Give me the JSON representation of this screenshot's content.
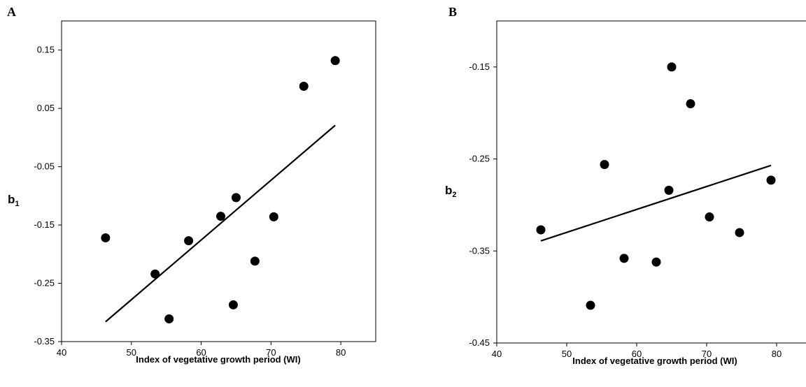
{
  "chart_data": [
    {
      "panel": "A",
      "type": "scatter",
      "xlabel": "Index of vegetative growth period (WI)",
      "ylabel": "b",
      "ylabel_sub": "1",
      "xlim": [
        40,
        85
      ],
      "ylim": [
        -0.35,
        0.2
      ],
      "xticks": [
        "40",
        "50",
        "60",
        "70",
        "80"
      ],
      "yticks": [
        "0.15",
        "0.05",
        "-0.05",
        "-0.15",
        "-0.25",
        "-0.35"
      ],
      "points": [
        [
          46.3,
          -0.172
        ],
        [
          53.4,
          -0.234
        ],
        [
          55.4,
          -0.311
        ],
        [
          58.2,
          -0.177
        ],
        [
          62.8,
          -0.135
        ],
        [
          64.6,
          -0.287
        ],
        [
          65.0,
          -0.103
        ],
        [
          67.7,
          -0.212
        ],
        [
          70.4,
          -0.136
        ],
        [
          74.7,
          0.088
        ],
        [
          79.2,
          0.132
        ]
      ],
      "trendline": [
        [
          46.3,
          -0.316
        ],
        [
          79.2,
          0.021
        ]
      ],
      "grid": false
    },
    {
      "panel": "B",
      "type": "scatter",
      "xlabel": "Index of vegetative growth period (WI)",
      "ylabel": "b",
      "ylabel_sub": "2",
      "xlim": [
        40,
        85
      ],
      "ylim": [
        -0.45,
        -0.1
      ],
      "xticks": [
        "40",
        "50",
        "60",
        "70",
        "80"
      ],
      "yticks": [
        "-0.15",
        "-0.25",
        "-0.35",
        "-0.45"
      ],
      "points": [
        [
          46.3,
          -0.327
        ],
        [
          53.4,
          -0.409
        ],
        [
          55.4,
          -0.256
        ],
        [
          58.2,
          -0.358
        ],
        [
          62.8,
          -0.362
        ],
        [
          64.6,
          -0.284
        ],
        [
          65.0,
          -0.15
        ],
        [
          67.7,
          -0.19
        ],
        [
          70.4,
          -0.313
        ],
        [
          74.7,
          -0.33
        ],
        [
          79.2,
          -0.273
        ]
      ],
      "trendline": [
        [
          46.3,
          -0.339
        ],
        [
          79.2,
          -0.257
        ]
      ],
      "grid": false
    }
  ]
}
